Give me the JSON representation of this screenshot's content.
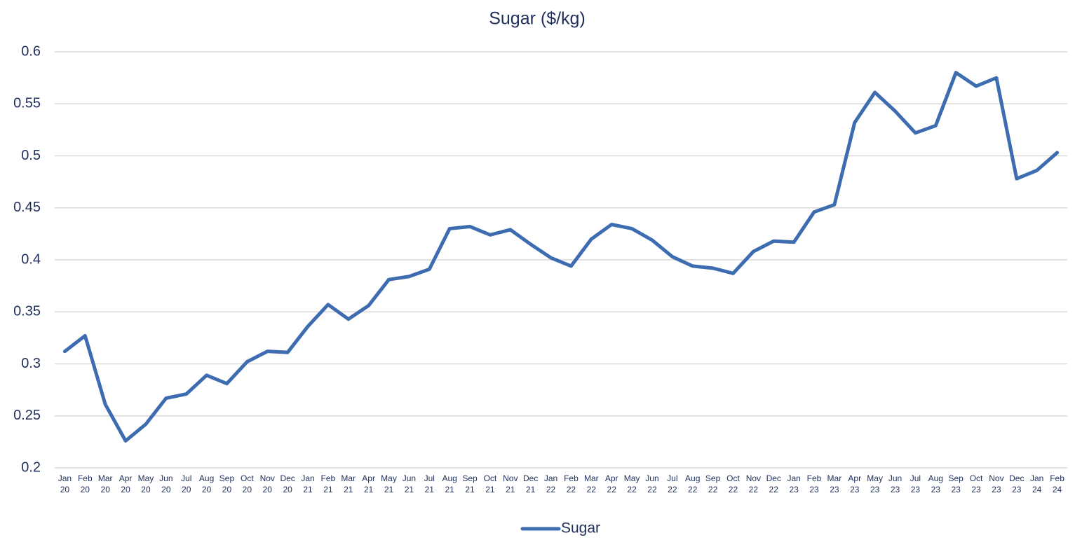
{
  "chart_data": {
    "type": "line",
    "title": "Sugar ($/kg)",
    "categories": [
      "Jan 20",
      "Feb 20",
      "Mar 20",
      "Apr 20",
      "May 20",
      "Jun 20",
      "Jul 20",
      "Aug 20",
      "Sep 20",
      "Oct 20",
      "Nov 20",
      "Dec 20",
      "Jan 21",
      "Feb 21",
      "Mar 21",
      "Apr 21",
      "May 21",
      "Jun 21",
      "Jul 21",
      "Aug 21",
      "Sep 21",
      "Oct 21",
      "Nov 21",
      "Dec 21",
      "Jan 22",
      "Feb 22",
      "Mar 22",
      "Apr 22",
      "May 22",
      "Jun 22",
      "Jul 22",
      "Aug 22",
      "Sep 22",
      "Oct 22",
      "Nov 22",
      "Dec 22",
      "Jan 23",
      "Feb 23",
      "Mar 23",
      "Apr 23",
      "May 23",
      "Jun 23",
      "Jul 23",
      "Aug 23",
      "Sep 23",
      "Oct 23",
      "Nov 23",
      "Dec 23",
      "Jan 24",
      "Feb 24"
    ],
    "series": [
      {
        "name": "Sugar",
        "color": "#3d6cb0",
        "values": [
          0.312,
          0.327,
          0.261,
          0.226,
          0.242,
          0.267,
          0.271,
          0.289,
          0.281,
          0.302,
          0.312,
          0.311,
          0.336,
          0.357,
          0.343,
          0.356,
          0.381,
          0.384,
          0.391,
          0.43,
          0.432,
          0.424,
          0.429,
          0.415,
          0.402,
          0.394,
          0.42,
          0.434,
          0.43,
          0.419,
          0.403,
          0.394,
          0.392,
          0.387,
          0.408,
          0.418,
          0.417,
          0.446,
          0.453,
          0.532,
          0.561,
          0.543,
          0.522,
          0.529,
          0.58,
          0.567,
          0.575,
          0.478,
          0.486,
          0.503
        ]
      }
    ],
    "ylim": [
      0.2,
      0.6
    ],
    "yticks": [
      0.2,
      0.25,
      0.3,
      0.35,
      0.4,
      0.45,
      0.5,
      0.55,
      0.6
    ],
    "grid": true,
    "legend": "bottom"
  }
}
